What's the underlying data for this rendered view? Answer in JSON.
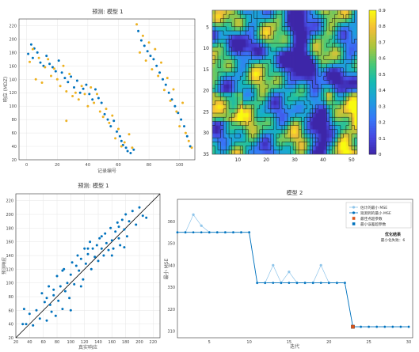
{
  "palette": {
    "axis": "#333333",
    "grid": "#e6e6e6",
    "blue": "#0072bd",
    "orange": "#edb120",
    "light_blue": "#8fc5ea",
    "square_orange": "#d95319",
    "square_teal": "#0072bd",
    "diagonal": "#000000"
  },
  "chart_data": [
    {
      "id": "top-left",
      "type": "scatter",
      "title": "预测: 模型 1",
      "xlabel": "记录编号",
      "ylabel": "响应 (MDZ)",
      "xlim": [
        -5,
        110
      ],
      "ylim": [
        20,
        230
      ],
      "xticks": [
        0,
        20,
        40,
        60,
        80,
        100
      ],
      "yticks": [
        20,
        40,
        60,
        80,
        100,
        120,
        140,
        160,
        180,
        200,
        220
      ],
      "grid": true,
      "series": [
        {
          "color": "blue",
          "points": [
            [
              1,
              178
            ],
            [
              3,
              192
            ],
            [
              4,
              172
            ],
            [
              5,
              186
            ],
            [
              7,
              180
            ],
            [
              9,
              165
            ],
            [
              11,
              160
            ],
            [
              13,
              175
            ],
            [
              15,
              163
            ],
            [
              17,
              158
            ],
            [
              19,
              152
            ],
            [
              21,
              168
            ],
            [
              23,
              150
            ],
            [
              25,
              142
            ],
            [
              27,
              136
            ],
            [
              29,
              144
            ],
            [
              31,
              128
            ],
            [
              33,
              138
            ],
            [
              35,
              120
            ],
            [
              37,
              126
            ],
            [
              39,
              132
            ],
            [
              41,
              118
            ],
            [
              43,
              110
            ],
            [
              45,
              125
            ],
            [
              47,
              112
            ],
            [
              49,
              105
            ],
            [
              51,
              88
            ],
            [
              53,
              80
            ],
            [
              55,
              70
            ],
            [
              57,
              78
            ],
            [
              59,
              62
            ],
            [
              61,
              55
            ],
            [
              62,
              48
            ],
            [
              63,
              42
            ],
            [
              65,
              38
            ],
            [
              66,
              33
            ],
            [
              68,
              30
            ],
            [
              70,
              35
            ],
            [
              73,
              212
            ],
            [
              75,
              198
            ],
            [
              77,
              190
            ],
            [
              79,
              182
            ],
            [
              81,
              175
            ],
            [
              83,
              170
            ],
            [
              85,
              160
            ],
            [
              87,
              150
            ],
            [
              89,
              140
            ],
            [
              91,
              132
            ],
            [
              93,
              120
            ],
            [
              95,
              110
            ],
            [
              97,
              100
            ],
            [
              99,
              90
            ],
            [
              101,
              80
            ],
            [
              103,
              70
            ],
            [
              105,
              55
            ],
            [
              107,
              40
            ]
          ]
        },
        {
          "color": "orange",
          "points": [
            [
              2,
              166
            ],
            [
              4,
              185
            ],
            [
              6,
              140
            ],
            [
              8,
              172
            ],
            [
              10,
              135
            ],
            [
              12,
              158
            ],
            [
              14,
              170
            ],
            [
              16,
              145
            ],
            [
              18,
              156
            ],
            [
              20,
              140
            ],
            [
              22,
              130
            ],
            [
              24,
              160
            ],
            [
              26,
              122
            ],
            [
              28,
              148
            ],
            [
              30,
              115
            ],
            [
              32,
              120
            ],
            [
              34,
              110
            ],
            [
              36,
              130
            ],
            [
              38,
              118
            ],
            [
              40,
              100
            ],
            [
              42,
              128
            ],
            [
              44,
              105
            ],
            [
              46,
              118
            ],
            [
              48,
              92
            ],
            [
              50,
              84
            ],
            [
              52,
              96
            ],
            [
              54,
              75
            ],
            [
              56,
              86
            ],
            [
              58,
              52
            ],
            [
              60,
              66
            ],
            [
              62,
              40
            ],
            [
              64,
              46
            ],
            [
              67,
              58
            ],
            [
              69,
              38
            ],
            [
              72,
              222
            ],
            [
              74,
              180
            ],
            [
              76,
              205
            ],
            [
              78,
              168
            ],
            [
              80,
              195
            ],
            [
              82,
              155
            ],
            [
              84,
              185
            ],
            [
              86,
              145
            ],
            [
              88,
              165
            ],
            [
              90,
              124
            ],
            [
              92,
              142
            ],
            [
              94,
              108
            ],
            [
              96,
              125
            ],
            [
              98,
              92
            ],
            [
              100,
              70
            ],
            [
              102,
              105
            ],
            [
              104,
              60
            ],
            [
              106,
              48
            ],
            [
              108,
              38
            ],
            [
              26,
              78
            ]
          ]
        }
      ]
    },
    {
      "id": "top-right",
      "type": "heatmap",
      "title": "",
      "xlabel": "",
      "ylabel": "",
      "xlim": [
        1,
        52
      ],
      "ylim": [
        35,
        1
      ],
      "xticks": [
        10,
        20,
        30,
        40,
        50
      ],
      "yticks": [
        5,
        10,
        15,
        20,
        25,
        30,
        35
      ],
      "colorbar": {
        "min": 0,
        "max": 0.9,
        "ticks": [
          0,
          0.1,
          0.2,
          0.3,
          0.4,
          0.5,
          0.6,
          0.7,
          0.8,
          0.9
        ]
      },
      "colormap": "parula",
      "contours": true
    },
    {
      "id": "bottom-left",
      "type": "scatter",
      "title": "预测: 模型 1",
      "xlabel": "真实响应",
      "ylabel": "预测响应",
      "xlim": [
        20,
        230
      ],
      "ylim": [
        20,
        230
      ],
      "xticks": [
        20,
        40,
        60,
        80,
        100,
        120,
        140,
        160,
        180,
        200,
        220
      ],
      "yticks": [
        20,
        40,
        60,
        80,
        100,
        120,
        140,
        160,
        180,
        200,
        220
      ],
      "grid": true,
      "reference_line": "y = x",
      "series": [
        {
          "color": "blue",
          "points": [
            [
              30,
              40
            ],
            [
              32,
              62
            ],
            [
              35,
              40
            ],
            [
              40,
              55
            ],
            [
              45,
              38
            ],
            [
              50,
              60
            ],
            [
              55,
              48
            ],
            [
              58,
              85
            ],
            [
              62,
              72
            ],
            [
              65,
              45
            ],
            [
              68,
              95
            ],
            [
              70,
              68
            ],
            [
              72,
              58
            ],
            [
              75,
              82
            ],
            [
              78,
              52
            ],
            [
              80,
              110
            ],
            [
              82,
              74
            ],
            [
              85,
              95
            ],
            [
              88,
              62
            ],
            [
              90,
              120
            ],
            [
              92,
              88
            ],
            [
              95,
              100
            ],
            [
              98,
              78
            ],
            [
              100,
              112
            ],
            [
              102,
              130
            ],
            [
              105,
              98
            ],
            [
              108,
              125
            ],
            [
              110,
              140
            ],
            [
              112,
              118
            ],
            [
              115,
              135
            ],
            [
              118,
              105
            ],
            [
              120,
              150
            ],
            [
              122,
              128
            ],
            [
              125,
              142
            ],
            [
              128,
              160
            ],
            [
              130,
              120
            ],
            [
              132,
              150
            ],
            [
              135,
              138
            ],
            [
              138,
              155
            ],
            [
              140,
              132
            ],
            [
              142,
              165
            ],
            [
              145,
              150
            ],
            [
              148,
              140
            ],
            [
              150,
              172
            ],
            [
              152,
              158
            ],
            [
              155,
              148
            ],
            [
              158,
              180
            ],
            [
              160,
              162
            ],
            [
              162,
              150
            ],
            [
              165,
              175
            ],
            [
              168,
              188
            ],
            [
              170,
              165
            ],
            [
              172,
              155
            ],
            [
              175,
              192
            ],
            [
              178,
              178
            ],
            [
              180,
              200
            ],
            [
              182,
              168
            ],
            [
              185,
              190
            ],
            [
              190,
              205
            ],
            [
              195,
              185
            ],
            [
              200,
              210
            ],
            [
              205,
              198
            ],
            [
              210,
              195
            ],
            [
              115,
              95
            ],
            [
              125,
              150
            ],
            [
              145,
              168
            ],
            [
              160,
              140
            ],
            [
              170,
              182
            ],
            [
              178,
              152
            ],
            [
              100,
              60
            ],
            [
              88,
              118
            ],
            [
              75,
              90
            ],
            [
              65,
              78
            ]
          ]
        }
      ]
    },
    {
      "id": "bottom-right",
      "type": "line",
      "title": "模型 2",
      "xlabel": "迭代",
      "ylabel": "最小 MSE",
      "xlim": [
        1,
        30.5
      ],
      "ylim": [
        307,
        370
      ],
      "xticks": [
        5,
        10,
        15,
        20,
        25,
        30
      ],
      "yticks": [
        310,
        320,
        330,
        340,
        350,
        360
      ],
      "legend": [
        "估计的最小 MSE",
        "观测到的最小 MSE",
        "最佳点超参数",
        "最小误差超参数"
      ],
      "legend_position": "top-right",
      "annotation": {
        "title": "优化结果",
        "line": "最小化失败：6"
      },
      "series": [
        {
          "name": "估计的最小 MSE",
          "color": "light_blue",
          "marker": "circle",
          "x": [
            1,
            2,
            3,
            4,
            5,
            6,
            7,
            8,
            9,
            10,
            11,
            12,
            13,
            14,
            15,
            16,
            17,
            18,
            19,
            20,
            21,
            22,
            23,
            24,
            25,
            26,
            27,
            28,
            29,
            30
          ],
          "y": [
            355,
            355,
            363,
            358,
            355,
            355,
            355,
            355,
            355,
            355,
            332,
            332,
            340,
            332,
            337,
            332,
            332,
            332,
            340,
            332,
            332,
            332,
            312,
            312,
            312,
            312,
            312,
            312,
            312,
            312
          ]
        },
        {
          "name": "观测到的最小 MSE",
          "color": "blue",
          "marker": "circle",
          "x": [
            1,
            2,
            3,
            4,
            5,
            6,
            7,
            8,
            9,
            10,
            11,
            12,
            13,
            14,
            15,
            16,
            17,
            18,
            19,
            20,
            21,
            22,
            23,
            24,
            25,
            26,
            27,
            28,
            29,
            30
          ],
          "y": [
            355,
            355,
            355,
            355,
            355,
            355,
            355,
            355,
            355,
            355,
            332,
            332,
            332,
            332,
            332,
            332,
            332,
            332,
            332,
            332,
            332,
            332,
            312,
            312,
            312,
            312,
            312,
            312,
            312,
            312
          ]
        }
      ],
      "highlight": {
        "x": 23,
        "y": 312
      }
    }
  ]
}
